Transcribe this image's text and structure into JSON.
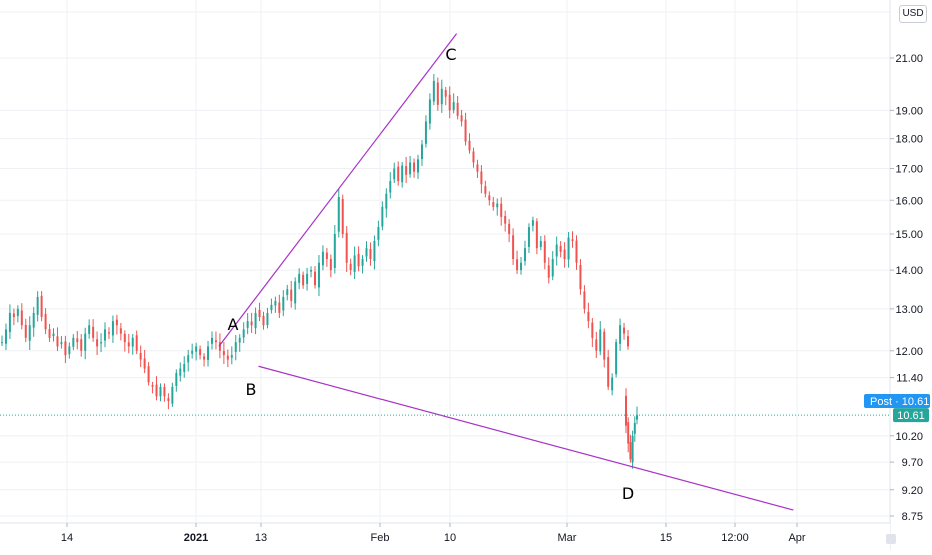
{
  "currency": "USD",
  "chart_data": {
    "type": "candlestick",
    "y_scale": "log",
    "ylim": [
      8.6,
      23.5
    ],
    "y_ticks": [
      "21.00",
      "19.00",
      "18.00",
      "17.00",
      "16.00",
      "15.00",
      "14.00",
      "13.00",
      "12.00",
      "11.40",
      "10.20",
      "9.70",
      "9.20",
      "8.75"
    ],
    "x_ticks": [
      "14",
      "2021",
      "13",
      "Feb",
      "10",
      "Mar",
      "15",
      "12:00",
      "Apr"
    ],
    "last_price": 10.61,
    "post_label": "Post",
    "post_price": "10.61",
    "last_price_label": "10.61",
    "colors": {
      "up": "#26a69a",
      "down": "#ef5350",
      "trendline": "#a832c8",
      "post_badge": "#2196f3",
      "price_badge": "#26a69a",
      "grid": "#eef0f4"
    },
    "annotations": [
      "A",
      "B",
      "C",
      "D"
    ],
    "trendlines": [
      {
        "name": "upper",
        "from": {
          "date": "2021-01-06",
          "price": 12.1
        },
        "to": {
          "date": "2021-02-11",
          "price": 22.0
        }
      },
      {
        "name": "lower",
        "from": {
          "date": "2021-01-12",
          "price": 11.65
        },
        "to": {
          "date": "2021-04-03",
          "price": 8.85
        }
      }
    ],
    "series": [
      {
        "segment": "Dec-Jan",
        "closes": [
          12.2,
          12.5,
          12.9,
          12.8,
          13.0,
          12.6,
          12.3,
          12.6,
          12.9,
          13.3,
          12.8,
          12.5,
          12.3,
          12.4,
          12.1,
          12.2,
          11.9,
          12.1,
          12.3,
          12.2,
          12.0,
          12.4,
          12.6,
          12.3,
          12.1,
          12.2,
          12.5,
          12.4,
          12.7,
          12.6,
          12.4,
          12.2,
          12.1,
          12.3,
          12.0,
          11.8,
          11.6,
          11.3,
          11.2,
          11.0,
          11.2,
          11.0,
          10.9,
          11.2,
          11.5,
          11.6,
          11.7,
          11.9,
          12.0,
          12.1,
          11.9,
          11.8,
          12.1,
          12.3,
          12.2,
          12.0,
          11.9,
          11.8,
          11.9,
          12.2,
          12.3,
          12.5,
          12.7,
          12.6,
          12.9,
          12.8,
          12.6,
          12.9,
          13.1,
          13.2,
          12.9,
          13.3,
          13.5,
          13.2,
          13.7,
          13.9,
          13.6,
          13.9,
          14.0,
          13.6,
          14.2,
          14.5,
          14.3,
          14.0,
          15.0,
          16.1,
          15.0,
          14.2,
          14.0,
          14.4,
          14.1,
          14.3,
          14.6,
          14.3,
          14.8,
          15.2,
          15.8,
          16.2,
          16.6,
          17.0,
          16.6,
          17.1,
          16.8,
          17.2,
          16.9,
          17.3,
          17.8,
          18.6,
          19.4,
          20.1,
          19.2,
          19.8,
          19.5,
          19.0,
          19.3,
          18.8,
          18.6,
          17.9,
          17.6,
          17.2,
          16.9,
          16.5,
          16.2,
          16.0,
          15.8,
          15.9,
          15.5,
          15.3,
          15.0,
          14.3,
          14.0,
          14.2,
          14.6,
          15.2,
          15.4,
          14.6,
          14.8,
          14.2,
          13.8,
          14.3,
          14.7,
          14.5,
          14.3,
          14.9,
          14.8,
          14.2,
          13.5,
          13.0,
          12.7,
          12.3,
          12.0,
          12.5,
          11.8,
          11.2,
          11.4,
          12.2,
          12.6,
          12.4,
          12.1
        ]
      },
      {
        "segment": "post-gap",
        "closes": [
          10.4,
          10.05,
          9.75,
          10.2,
          10.45,
          10.61
        ]
      }
    ]
  }
}
